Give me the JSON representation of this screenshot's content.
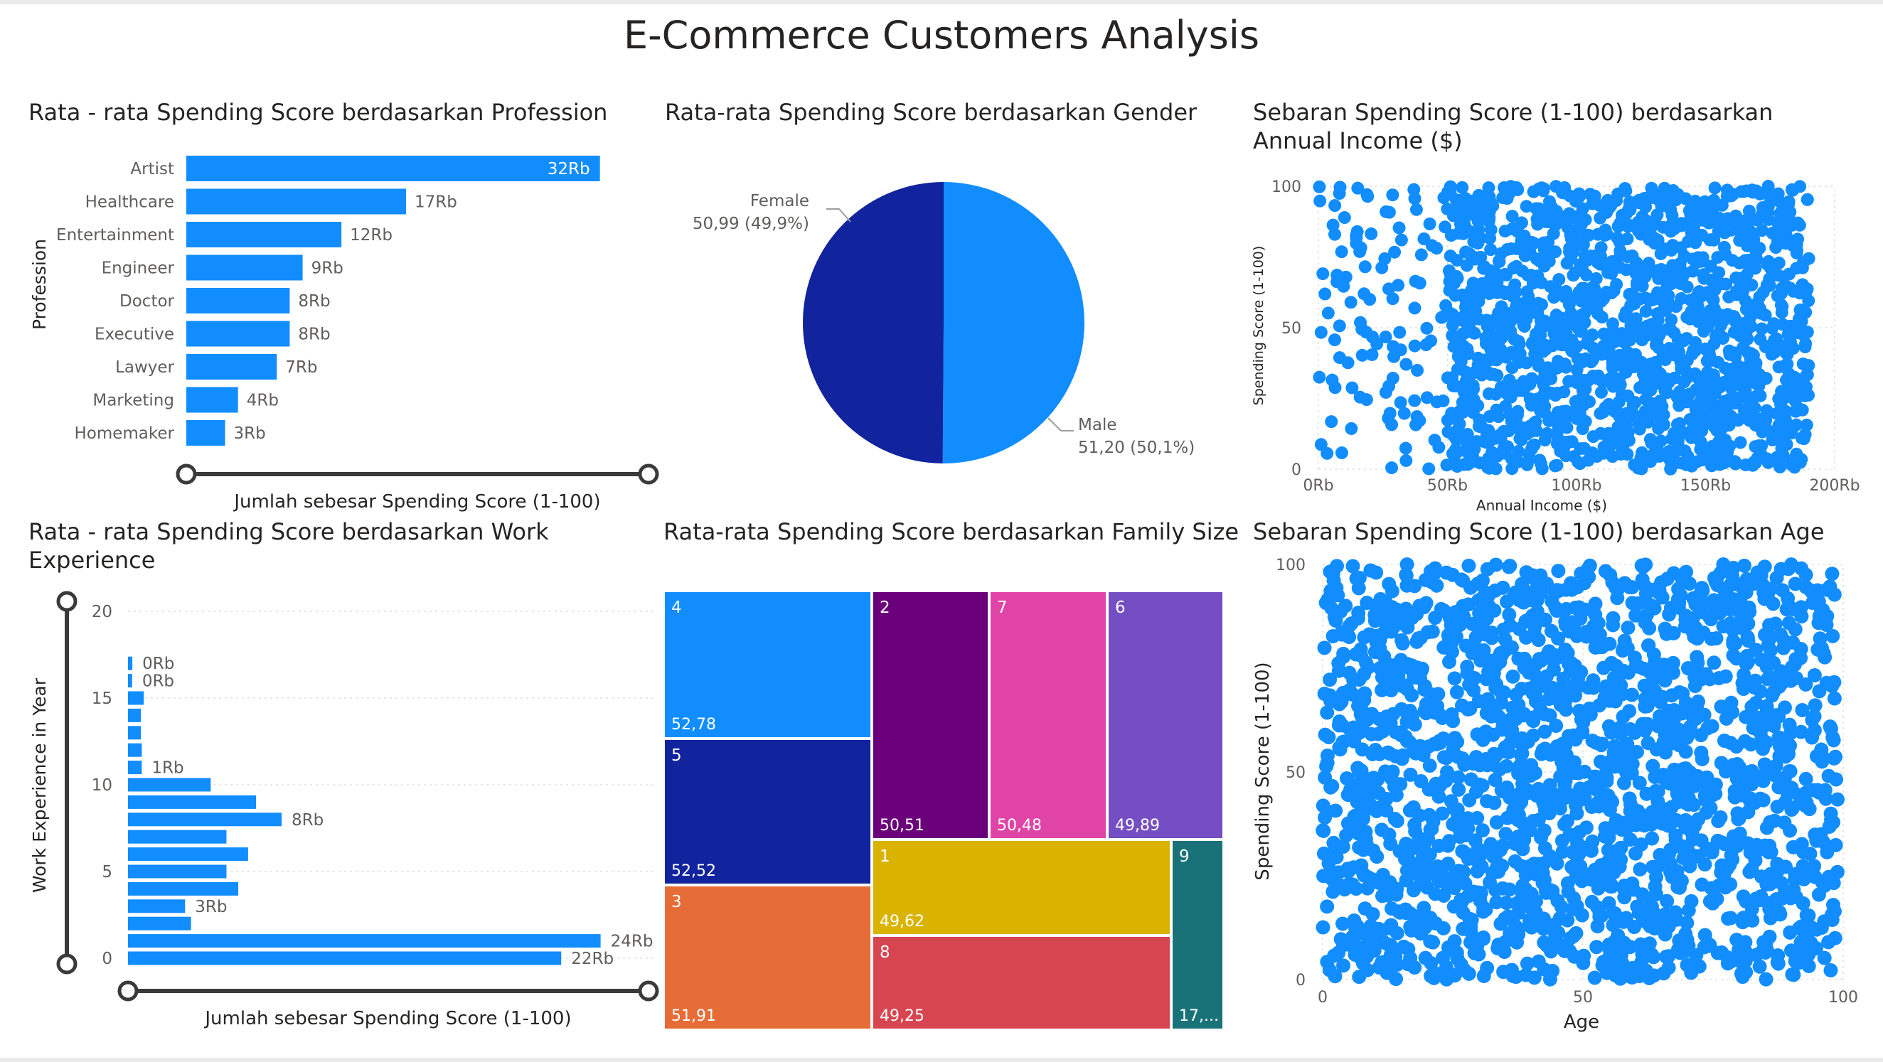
{
  "dashboard_title": "E-Commerce Customers Analysis",
  "colors": {
    "bar": "#118dff",
    "scatter": "#118dff",
    "female": "#12239e",
    "male": "#118dff",
    "slider": "#3a3a3a",
    "text_dark": "#252423",
    "text_muted": "#605e5c"
  },
  "chart_data": [
    {
      "id": "profession",
      "type": "bar",
      "orientation": "horizontal",
      "title": "Rata - rata Spending Score berdasarkan Profession",
      "ylabel": "Profession",
      "xlabel": "Jumlah sebesar Spending Score (1-100)",
      "categories": [
        "Artist",
        "Healthcare",
        "Entertainment",
        "Engineer",
        "Doctor",
        "Executive",
        "Lawyer",
        "Marketing",
        "Homemaker"
      ],
      "values": [
        32000,
        17000,
        12000,
        9000,
        8000,
        8000,
        7000,
        4000,
        3000
      ],
      "data_labels": [
        "32Rb",
        "17Rb",
        "12Rb",
        "9Rb",
        "8Rb",
        "8Rb",
        "7Rb",
        "4Rb",
        "3Rb"
      ],
      "xlim": [
        0,
        34000
      ]
    },
    {
      "id": "gender",
      "type": "pie",
      "title": "Rata-rata Spending Score berdasarkan Gender",
      "slices": [
        {
          "name": "Female",
          "value": 50.99,
          "percent": "49,9%",
          "label_value": "50,99 (49,9%)"
        },
        {
          "name": "Male",
          "value": 51.2,
          "percent": "50,1%",
          "label_value": "51,20 (50,1%)"
        }
      ]
    },
    {
      "id": "income_scatter",
      "type": "scatter",
      "title": "Sebaran Spending Score (1-100) berdasarkan Annual Income ($)",
      "xlabel": "Annual Income ($)",
      "ylabel": "Spending Score (1-100)",
      "xlim": [
        0,
        200000
      ],
      "ylim": [
        0,
        100
      ],
      "xticks": [
        "0Rb",
        "50Rb",
        "100Rb",
        "150Rb",
        "200Rb"
      ],
      "yticks": [
        "0",
        "50",
        "100"
      ],
      "grid": true,
      "n_points": 1600,
      "x_range": [
        0,
        190000
      ],
      "dense_from": 50000
    },
    {
      "id": "work_experience",
      "type": "bar",
      "orientation": "horizontal",
      "title": "Rata - rata Spending Score berdasarkan Work Experience",
      "ylabel": "Work Experience in Year",
      "xlabel": "Jumlah sebesar Spending Score (1-100)",
      "yticks": [
        "0",
        "5",
        "10",
        "15",
        "20"
      ],
      "ylim": [
        0,
        20
      ],
      "grid": true,
      "categories": [
        0,
        1,
        2,
        3,
        4,
        5,
        6,
        7,
        8,
        9,
        10,
        11,
        12,
        13,
        14,
        15,
        16,
        17
      ],
      "values": [
        22000,
        24000,
        3200,
        2900,
        5600,
        5000,
        6100,
        5000,
        7800,
        6500,
        4200,
        700,
        700,
        650,
        650,
        800,
        210,
        220
      ],
      "data_labels": [
        "22Rb",
        "24Rb",
        "",
        "3Rb",
        "",
        "",
        "",
        "",
        "8Rb",
        "",
        "",
        "1Rb",
        "",
        "",
        "",
        "",
        "0Rb",
        "0Rb"
      ],
      "xlim": [
        0,
        26000
      ]
    },
    {
      "id": "family_size",
      "type": "treemap",
      "title": "Rata-rata Spending Score berdasarkan Family Size",
      "items": [
        {
          "name": "4",
          "value": 52.78,
          "label": "52,78",
          "color": "#118dff"
        },
        {
          "name": "5",
          "value": 52.52,
          "label": "52,52",
          "color": "#12239e"
        },
        {
          "name": "3",
          "value": 51.91,
          "label": "51,91",
          "color": "#e66c37"
        },
        {
          "name": "2",
          "value": 50.51,
          "label": "50,51",
          "color": "#6b007b"
        },
        {
          "name": "7",
          "value": 50.48,
          "label": "50,48",
          "color": "#e044a7"
        },
        {
          "name": "6",
          "value": 49.89,
          "label": "49,89",
          "color": "#744ec2"
        },
        {
          "name": "1",
          "value": 49.62,
          "label": "49,62",
          "color": "#d9b300"
        },
        {
          "name": "8",
          "value": 49.25,
          "label": "49,25",
          "color": "#d64550"
        },
        {
          "name": "9",
          "value": 17.0,
          "label": "17,...",
          "color": "#197278"
        }
      ]
    },
    {
      "id": "age_scatter",
      "type": "scatter",
      "title": "Sebaran Spending Score (1-100) berdasarkan Age",
      "xlabel": "Age",
      "ylabel": "Spending Score (1-100)",
      "xlim": [
        0,
        100
      ],
      "ylim": [
        0,
        100
      ],
      "xticks": [
        "0",
        "50",
        "100"
      ],
      "yticks": [
        "0",
        "50",
        "100"
      ],
      "grid": true,
      "n_points": 2000,
      "x_range": [
        0,
        99
      ]
    }
  ]
}
